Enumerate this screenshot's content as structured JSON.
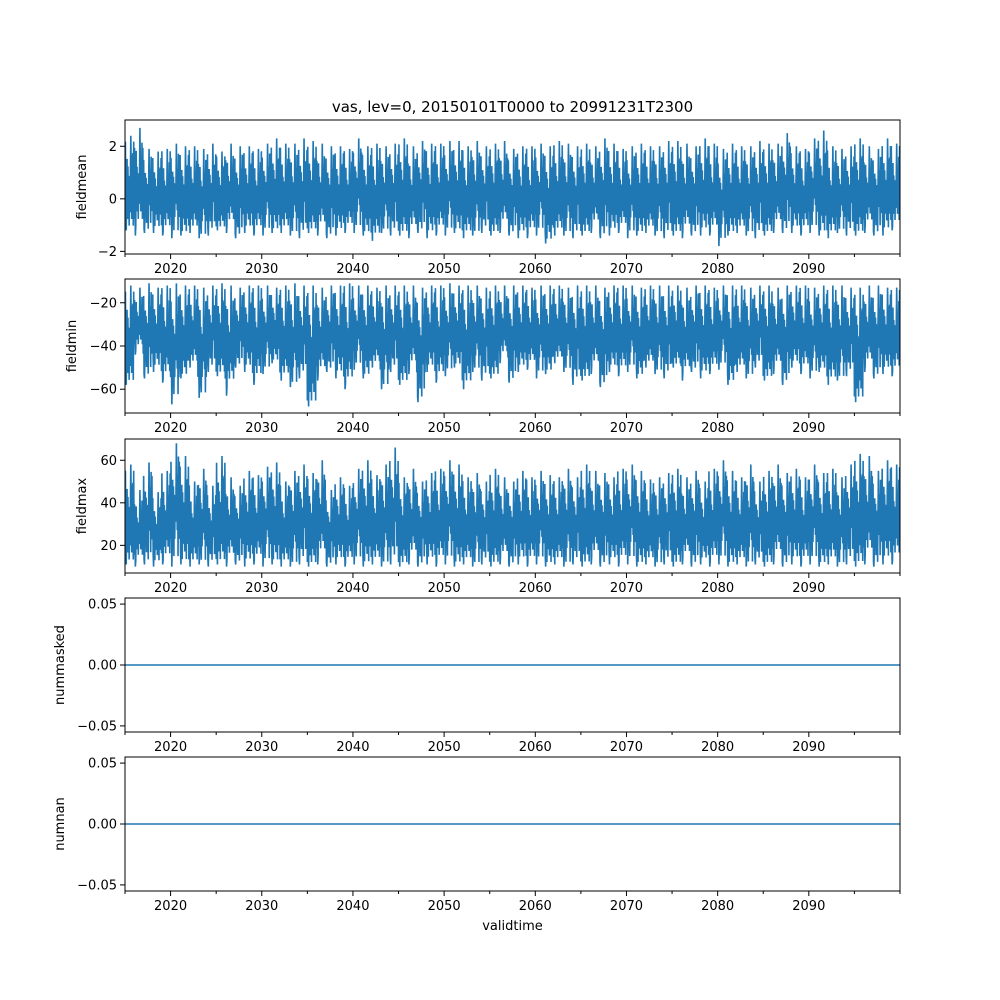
{
  "figure": {
    "title": "vas, lev=0, 20150101T0000 to 20991231T2300",
    "xlabel": "validtime"
  },
  "colors": {
    "series": "#1f77b4",
    "axis": "#000000",
    "background": "#ffffff"
  },
  "chart_data": [
    {
      "type": "line",
      "ylabel": "fieldmean",
      "xlim": [
        2015,
        2100
      ],
      "ylim": [
        -2.1,
        3.0
      ],
      "yticks": [
        -2,
        0,
        2
      ],
      "ytick_labels": [
        "−2",
        "0",
        "2"
      ],
      "xticks": [
        2020,
        2030,
        2040,
        2050,
        2060,
        2070,
        2080,
        2090
      ],
      "xtick_labels": [
        "2020",
        "2030",
        "2040",
        "2050",
        "2060",
        "2070",
        "2080",
        "2090"
      ],
      "series": [
        {
          "x": [
            2015,
            2016,
            2017,
            2018,
            2019,
            2020,
            2021,
            2022,
            2023,
            2024,
            2025,
            2026,
            2027,
            2028,
            2029,
            2030,
            2031,
            2032,
            2033,
            2034,
            2035,
            2036,
            2037,
            2038,
            2039,
            2040,
            2041,
            2042,
            2043,
            2044,
            2045,
            2046,
            2047,
            2048,
            2049,
            2050,
            2051,
            2052,
            2053,
            2054,
            2055,
            2056,
            2057,
            2058,
            2059,
            2060,
            2061,
            2062,
            2063,
            2064,
            2065,
            2066,
            2067,
            2068,
            2069,
            2070,
            2071,
            2072,
            2073,
            2074,
            2075,
            2076,
            2077,
            2078,
            2079,
            2080,
            2081,
            2082,
            2083,
            2084,
            2085,
            2086,
            2087,
            2088,
            2089,
            2090,
            2091,
            2092,
            2093,
            2094,
            2095,
            2096,
            2097,
            2098,
            2099
          ],
          "ymin": [
            -1.2,
            -1.4,
            -1.3,
            -1.3,
            -1.4,
            -1.5,
            -1.4,
            -1.3,
            -1.5,
            -1.4,
            -1.2,
            -1.3,
            -1.5,
            -1.3,
            -1.4,
            -1.4,
            -1.3,
            -1.3,
            -1.4,
            -1.5,
            -1.3,
            -1.4,
            -1.5,
            -1.4,
            -1.3,
            -1.3,
            -1.4,
            -1.6,
            -1.3,
            -1.4,
            -1.4,
            -1.5,
            -1.3,
            -1.5,
            -1.4,
            -1.4,
            -1.3,
            -1.5,
            -1.4,
            -1.3,
            -1.4,
            -1.3,
            -1.4,
            -1.5,
            -1.5,
            -1.4,
            -1.7,
            -1.4,
            -1.4,
            -1.5,
            -1.4,
            -1.3,
            -1.5,
            -1.4,
            -1.3,
            -1.5,
            -1.4,
            -1.3,
            -1.4,
            -1.5,
            -1.4,
            -1.5,
            -1.4,
            -1.4,
            -1.4,
            -1.8,
            -1.4,
            -1.3,
            -1.4,
            -1.5,
            -1.4,
            -1.3,
            -1.3,
            -1.3,
            -1.4,
            -1.3,
            -1.4,
            -1.5,
            -1.3,
            -1.4,
            -1.4,
            -1.3,
            -1.4,
            -1.4,
            -1.2
          ],
          "ymax": [
            2.4,
            2.7,
            1.9,
            1.8,
            1.9,
            2.1,
            2.0,
            2.0,
            1.9,
            2.1,
            1.8,
            2.1,
            2.0,
            2.0,
            1.9,
            2.1,
            2.3,
            2.1,
            2.1,
            2.3,
            2.2,
            2.1,
            2.0,
            2.0,
            1.9,
            2.3,
            2.0,
            2.1,
            2.0,
            2.1,
            2.3,
            2.0,
            2.2,
            2.1,
            2.1,
            2.2,
            2.2,
            2.0,
            2.2,
            2.0,
            2.1,
            2.2,
            1.9,
            2.0,
            2.0,
            2.1,
            2.0,
            2.2,
            2.1,
            2.0,
            2.1,
            2.0,
            2.3,
            2.1,
            1.9,
            2.0,
            2.1,
            2.0,
            2.0,
            2.2,
            2.2,
            2.1,
            2.0,
            2.3,
            2.1,
            1.9,
            2.1,
            2.0,
            2.0,
            2.2,
            2.1,
            2.1,
            2.5,
            2.0,
            1.9,
            2.3,
            2.6,
            2.0,
            1.9,
            2.0,
            2.3,
            2.0,
            1.9,
            2.3,
            2.1
          ]
        }
      ]
    },
    {
      "type": "line",
      "ylabel": "fieldmin",
      "xlim": [
        2015,
        2100
      ],
      "ylim": [
        -71,
        -9
      ],
      "yticks": [
        -60,
        -40,
        -20
      ],
      "ytick_labels": [
        "−60",
        "−40",
        "−20"
      ],
      "xticks": [
        2020,
        2030,
        2040,
        2050,
        2060,
        2070,
        2080,
        2090
      ],
      "xtick_labels": [
        "2020",
        "2030",
        "2040",
        "2050",
        "2060",
        "2070",
        "2080",
        "2090"
      ],
      "series": [
        {
          "x": [
            2015,
            2016,
            2017,
            2018,
            2019,
            2020,
            2021,
            2022,
            2023,
            2024,
            2025,
            2026,
            2027,
            2028,
            2029,
            2030,
            2031,
            2032,
            2033,
            2034,
            2035,
            2036,
            2037,
            2038,
            2039,
            2040,
            2041,
            2042,
            2043,
            2044,
            2045,
            2046,
            2047,
            2048,
            2049,
            2050,
            2051,
            2052,
            2053,
            2054,
            2055,
            2056,
            2057,
            2058,
            2059,
            2060,
            2061,
            2062,
            2063,
            2064,
            2065,
            2066,
            2067,
            2068,
            2069,
            2070,
            2071,
            2072,
            2073,
            2074,
            2075,
            2076,
            2077,
            2078,
            2079,
            2080,
            2081,
            2082,
            2083,
            2084,
            2085,
            2086,
            2087,
            2088,
            2089,
            2090,
            2091,
            2092,
            2093,
            2094,
            2095,
            2096,
            2097,
            2098,
            2099
          ],
          "ymin": [
            -58,
            -44,
            -55,
            -52,
            -57,
            -67,
            -55,
            -50,
            -64,
            -52,
            -54,
            -63,
            -50,
            -52,
            -58,
            -53,
            -48,
            -56,
            -59,
            -55,
            -68,
            -56,
            -52,
            -55,
            -60,
            -51,
            -55,
            -50,
            -60,
            -52,
            -58,
            -53,
            -66,
            -52,
            -57,
            -54,
            -50,
            -60,
            -52,
            -56,
            -55,
            -48,
            -57,
            -52,
            -51,
            -55,
            -53,
            -48,
            -52,
            -58,
            -56,
            -53,
            -59,
            -52,
            -54,
            -52,
            -55,
            -50,
            -53,
            -55,
            -50,
            -56,
            -52,
            -55,
            -53,
            -51,
            -58,
            -52,
            -55,
            -50,
            -56,
            -53,
            -58,
            -50,
            -53,
            -55,
            -52,
            -58,
            -56,
            -54,
            -66,
            -52,
            -55,
            -53,
            -54
          ],
          "ymax": [
            -12,
            -13,
            -11,
            -13,
            -12,
            -11,
            -12,
            -12,
            -13,
            -12,
            -11,
            -12,
            -13,
            -12,
            -12,
            -12,
            -13,
            -12,
            -11,
            -12,
            -12,
            -13,
            -12,
            -12,
            -11,
            -12,
            -12,
            -13,
            -12,
            -12,
            -12,
            -12,
            -13,
            -12,
            -12,
            -11,
            -12,
            -12,
            -12,
            -13,
            -12,
            -12,
            -12,
            -12,
            -13,
            -12,
            -12,
            -12,
            -13,
            -12,
            -12,
            -12,
            -13,
            -12,
            -12,
            -12,
            -13,
            -12,
            -12,
            -12,
            -12,
            -13,
            -12,
            -12,
            -13,
            -12,
            -12,
            -12,
            -13,
            -12,
            -12,
            -13,
            -12,
            -12,
            -12,
            -13,
            -12,
            -12,
            -12,
            -13,
            -13,
            -12,
            -12,
            -13,
            -13
          ]
        }
      ]
    },
    {
      "type": "line",
      "ylabel": "fieldmax",
      "xlim": [
        2015,
        2100
      ],
      "ylim": [
        7,
        70
      ],
      "yticks": [
        20,
        40,
        60
      ],
      "ytick_labels": [
        "20",
        "40",
        "60"
      ],
      "xticks": [
        2020,
        2030,
        2040,
        2050,
        2060,
        2070,
        2080,
        2090
      ],
      "xtick_labels": [
        "2020",
        "2030",
        "2040",
        "2050",
        "2060",
        "2070",
        "2080",
        "2090"
      ],
      "series": [
        {
          "x": [
            2015,
            2016,
            2017,
            2018,
            2019,
            2020,
            2021,
            2022,
            2023,
            2024,
            2025,
            2026,
            2027,
            2028,
            2029,
            2030,
            2031,
            2032,
            2033,
            2034,
            2035,
            2036,
            2037,
            2038,
            2039,
            2040,
            2041,
            2042,
            2043,
            2044,
            2045,
            2046,
            2047,
            2048,
            2049,
            2050,
            2051,
            2052,
            2053,
            2054,
            2055,
            2056,
            2057,
            2058,
            2059,
            2060,
            2061,
            2062,
            2063,
            2064,
            2065,
            2066,
            2067,
            2068,
            2069,
            2070,
            2071,
            2072,
            2073,
            2074,
            2075,
            2076,
            2077,
            2078,
            2079,
            2080,
            2081,
            2082,
            2083,
            2084,
            2085,
            2086,
            2087,
            2088,
            2089,
            2090,
            2091,
            2092,
            2093,
            2094,
            2095,
            2096,
            2097,
            2098,
            2099
          ],
          "ymin": [
            11,
            10,
            11,
            10,
            11,
            10,
            11,
            10,
            11,
            10,
            11,
            10,
            11,
            10,
            11,
            10,
            11,
            10,
            10,
            11,
            10,
            11,
            10,
            11,
            10,
            11,
            10,
            11,
            10,
            11,
            10,
            11,
            10,
            11,
            10,
            11,
            10,
            11,
            10,
            11,
            10,
            11,
            10,
            11,
            10,
            11,
            10,
            11,
            10,
            11,
            10,
            11,
            10,
            11,
            10,
            11,
            10,
            11,
            10,
            11,
            10,
            11,
            10,
            11,
            10,
            11,
            10,
            11,
            10,
            11,
            10,
            11,
            10,
            11,
            10,
            11,
            10,
            11,
            10,
            11,
            10,
            11,
            10,
            11,
            11
          ],
          "ymax": [
            58,
            46,
            59,
            45,
            55,
            68,
            62,
            50,
            56,
            48,
            62,
            52,
            48,
            55,
            53,
            57,
            59,
            50,
            55,
            58,
            54,
            60,
            46,
            52,
            48,
            56,
            60,
            53,
            58,
            66,
            52,
            56,
            50,
            54,
            56,
            60,
            58,
            52,
            54,
            50,
            56,
            52,
            50,
            55,
            52,
            55,
            53,
            52,
            56,
            52,
            58,
            55,
            54,
            52,
            56,
            58,
            55,
            51,
            52,
            54,
            56,
            52,
            55,
            50,
            56,
            60,
            55,
            52,
            58,
            50,
            55,
            58,
            54,
            56,
            52,
            58,
            54,
            56,
            52,
            58,
            63,
            62,
            55,
            60,
            58
          ]
        }
      ]
    },
    {
      "type": "line",
      "ylabel": "nummasked",
      "xlim": [
        2015,
        2100
      ],
      "ylim": [
        -0.055,
        0.055
      ],
      "yticks": [
        -0.05,
        0.0,
        0.05
      ],
      "ytick_labels": [
        "−0.05",
        "0.00",
        "0.05"
      ],
      "xticks": [
        2020,
        2030,
        2040,
        2050,
        2060,
        2070,
        2080,
        2090
      ],
      "xtick_labels": [
        "2020",
        "2030",
        "2040",
        "2050",
        "2060",
        "2070",
        "2080",
        "2090"
      ],
      "series": [
        {
          "x": [
            2015,
            2100
          ],
          "y": [
            0,
            0
          ]
        }
      ]
    },
    {
      "type": "line",
      "ylabel": "numnan",
      "xlim": [
        2015,
        2100
      ],
      "ylim": [
        -0.055,
        0.055
      ],
      "yticks": [
        -0.05,
        0.0,
        0.05
      ],
      "ytick_labels": [
        "−0.05",
        "0.00",
        "0.05"
      ],
      "xticks": [
        2020,
        2030,
        2040,
        2050,
        2060,
        2070,
        2080,
        2090
      ],
      "xtick_labels": [
        "2020",
        "2030",
        "2040",
        "2050",
        "2060",
        "2070",
        "2080",
        "2090"
      ],
      "series": [
        {
          "x": [
            2015,
            2100
          ],
          "y": [
            0,
            0
          ]
        }
      ]
    }
  ]
}
